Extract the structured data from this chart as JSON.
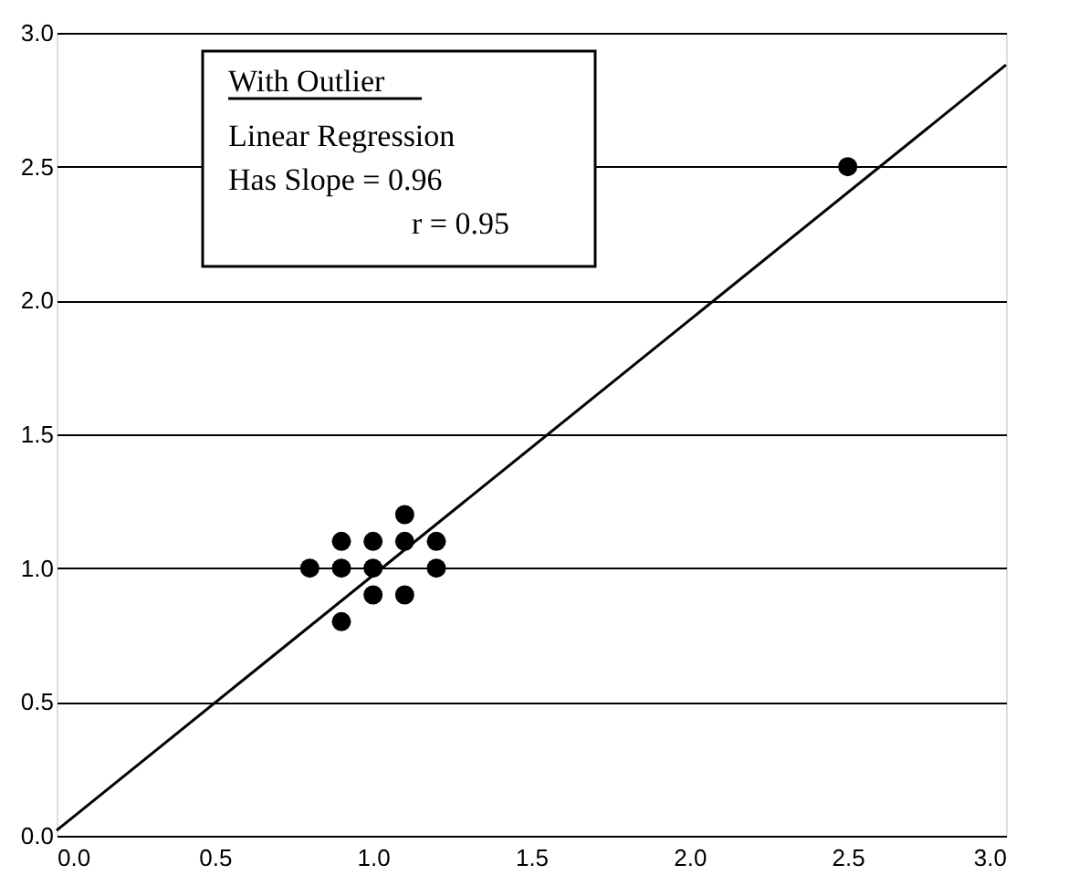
{
  "chart_data": {
    "type": "scatter",
    "xlim": [
      0,
      3
    ],
    "ylim": [
      0,
      3
    ],
    "xticks": [
      {
        "value": 0,
        "label": "0.0"
      },
      0.5,
      {
        "value": 1,
        "label": "1.0"
      },
      1.5,
      {
        "value": 2,
        "label": "2.0"
      },
      2.5,
      {
        "value": 3,
        "label": "3.0"
      }
    ],
    "yticks": [
      {
        "value": 0,
        "label": "0.0"
      },
      0.5,
      {
        "value": 1,
        "label": "1.0"
      },
      1.5,
      {
        "value": 2,
        "label": "2.0"
      },
      2.5,
      {
        "value": 3,
        "label": "3.0"
      }
    ],
    "grid": "y",
    "annotations": [
      "With Outlier",
      "Linear Regression",
      "Has Slope = 0.96",
      "r = 0.95"
    ],
    "series": [
      {
        "type": "scatter",
        "marker": "circle",
        "color": "#000000",
        "x": [
          0.8,
          0.9,
          0.9,
          0.9,
          1.0,
          1.0,
          1.0,
          1.1,
          1.1,
          1.1,
          1.2,
          1.2,
          2.5
        ],
        "values": [
          1.0,
          1.1,
          1.0,
          0.8,
          1.1,
          1.0,
          0.9,
          1.2,
          1.1,
          0.9,
          1.1,
          1.0,
          2.5
        ]
      },
      {
        "type": "line",
        "marker": "none",
        "color": "#000000",
        "x": [
          0,
          3
        ],
        "values": [
          0.02,
          2.88
        ]
      }
    ]
  }
}
